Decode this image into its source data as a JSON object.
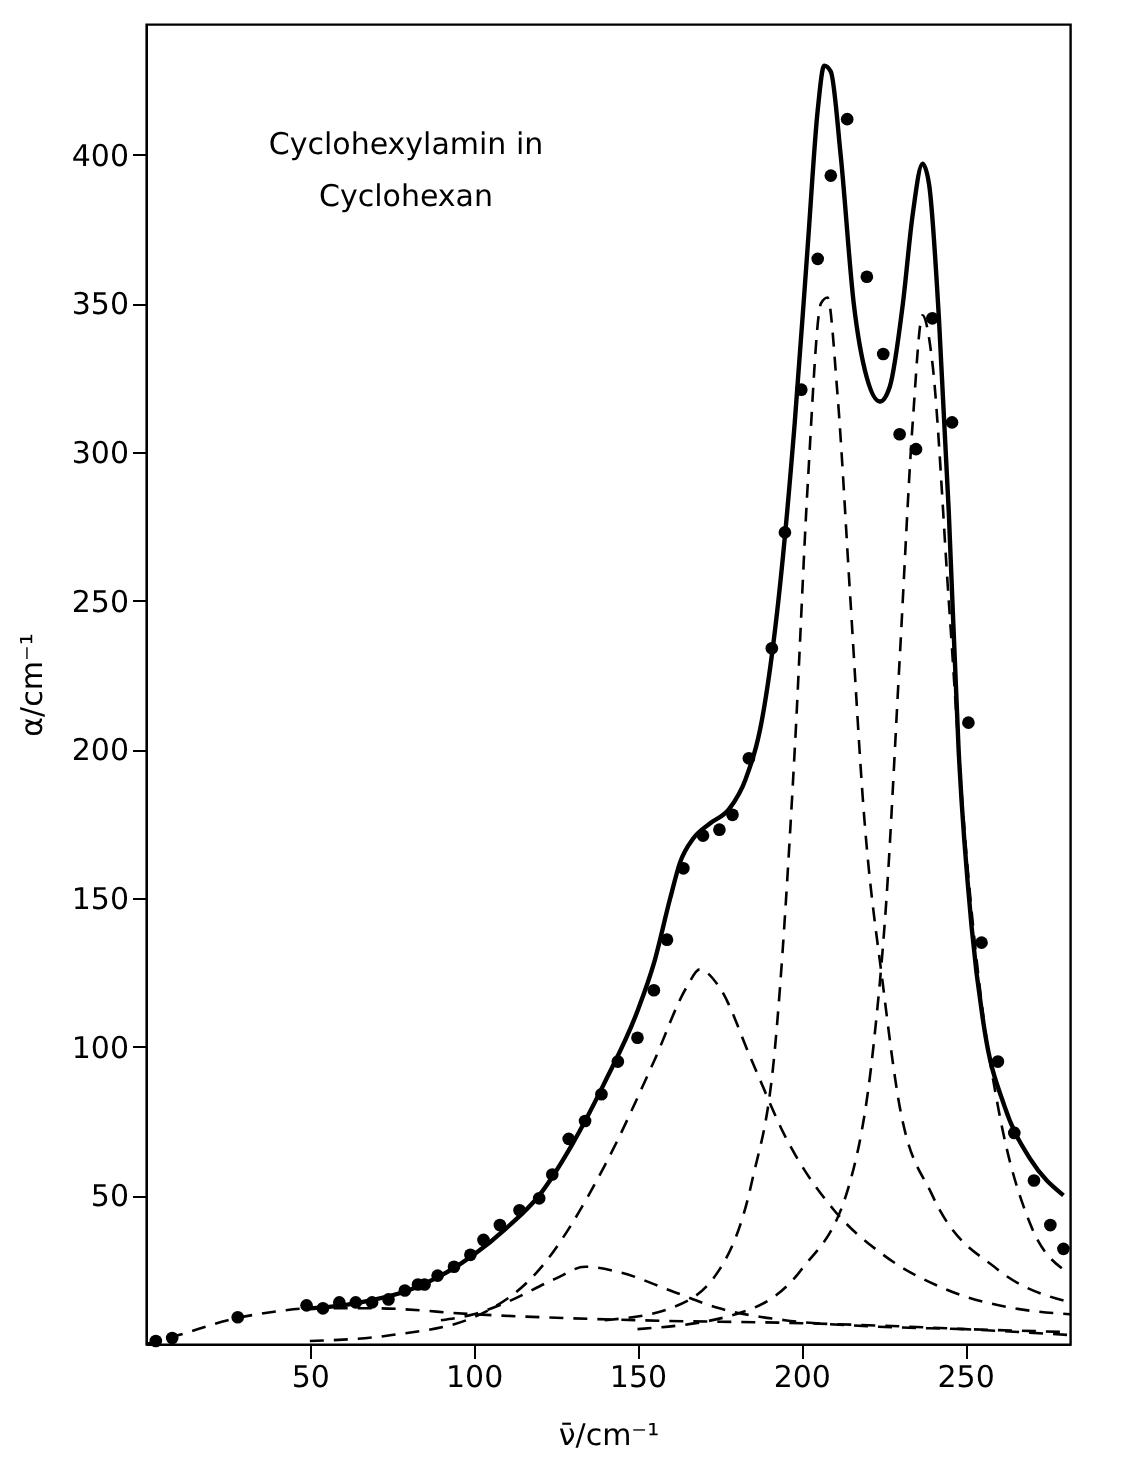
{
  "chart_data": {
    "type": "line",
    "xlabel": "ν̄/cm⁻¹",
    "ylabel": "α/cm⁻¹",
    "annotations": [
      "Cyclohexylamin in",
      "Cyclohexan"
    ],
    "xlim": [
      0,
      282
    ],
    "ylim": [
      0,
      444
    ],
    "xticks": [
      50,
      100,
      150,
      200,
      250
    ],
    "yticks": [
      50,
      100,
      150,
      200,
      250,
      300,
      350,
      400
    ],
    "grid": false,
    "series": [
      {
        "type": "scatter",
        "marker": "circle",
        "color": "#000000",
        "x": [
          3,
          8,
          28,
          49,
          54,
          59,
          64,
          69,
          74,
          79,
          83,
          85,
          89,
          94,
          99,
          103,
          108,
          114,
          120,
          124,
          129,
          134,
          139,
          144,
          150,
          155,
          159,
          164,
          170,
          175,
          179,
          184,
          191,
          195,
          200,
          205,
          209,
          214,
          220,
          225,
          230,
          235,
          240,
          246,
          251,
          255,
          260,
          265,
          271,
          276,
          280
        ],
        "values": [
          1,
          2,
          9,
          13,
          12,
          14,
          14,
          14,
          15,
          18,
          20,
          20,
          23,
          26,
          30,
          35,
          40,
          45,
          49,
          57,
          69,
          75,
          84,
          95,
          103,
          119,
          136,
          160,
          171,
          173,
          178,
          197,
          234,
          273,
          321,
          365,
          393,
          412,
          359,
          333,
          306,
          301,
          345,
          310,
          209,
          135,
          95,
          71,
          55,
          40,
          32
        ]
      },
      {
        "type": "line",
        "line_style": "solid",
        "color": "#000000",
        "x": [
          50,
          60,
          70,
          80,
          90,
          100,
          110,
          120,
          130,
          140,
          150,
          155,
          160,
          163,
          167,
          172,
          178,
          183,
          188,
          193,
          198,
          202,
          205,
          207,
          209,
          212,
          216,
          220,
          224,
          227,
          231,
          234,
          237,
          239,
          242,
          245,
          248,
          252,
          256,
          262,
          270,
          280
        ],
        "values": [
          12,
          13,
          15,
          18,
          23,
          30,
          39,
          50,
          67,
          88,
          112,
          128,
          150,
          162,
          170,
          175,
          180,
          190,
          210,
          250,
          310,
          370,
          415,
          430,
          428,
          400,
          350,
          325,
          317,
          322,
          350,
          380,
          397,
          390,
          345,
          280,
          200,
          140,
          105,
          80,
          62,
          50
        ]
      },
      {
        "type": "line",
        "line_style": "dashed",
        "color": "#000000",
        "x": [
          0,
          10,
          25,
          40,
          50,
          70,
          100,
          150,
          200,
          250,
          282
        ],
        "values": [
          0,
          3,
          8,
          11,
          12,
          12,
          10,
          8,
          7,
          5,
          3
        ]
      },
      {
        "type": "line",
        "line_style": "dashed",
        "color": "#000000",
        "x": [
          90,
          100,
          110,
          125,
          134,
          145,
          160,
          175,
          195,
          220,
          250,
          282
        ],
        "values": [
          8,
          10,
          14,
          22,
          26,
          24,
          18,
          12,
          8,
          6,
          5,
          4
        ]
      },
      {
        "type": "line",
        "line_style": "dashed",
        "color": "#000000",
        "x": [
          50,
          75,
          100,
          120,
          140,
          155,
          165,
          169,
          175,
          185,
          195,
          210,
          225,
          245,
          265,
          282
        ],
        "values": [
          1,
          3,
          9,
          25,
          60,
          95,
          120,
          126,
          120,
          95,
          70,
          45,
          30,
          18,
          12,
          10
        ]
      },
      {
        "type": "line",
        "line_style": "dashed",
        "color": "#000000",
        "x": [
          140,
          160,
          175,
          185,
          192,
          198,
          202,
          206,
          208,
          211,
          215,
          219,
          225,
          230,
          240,
          260,
          282
        ],
        "values": [
          8,
          12,
          25,
          55,
          100,
          200,
          290,
          350,
          352,
          320,
          250,
          180,
          120,
          80,
          50,
          25,
          14
        ]
      },
      {
        "type": "line",
        "line_style": "dashed",
        "color": "#000000",
        "x": [
          150,
          180,
          200,
          215,
          222,
          226,
          230,
          234,
          237,
          240,
          245,
          250,
          255,
          260,
          270,
          280
        ],
        "values": [
          5,
          10,
          25,
          55,
          100,
          150,
          230,
          310,
          346,
          330,
          250,
          170,
          115,
          80,
          40,
          25
        ]
      }
    ]
  }
}
